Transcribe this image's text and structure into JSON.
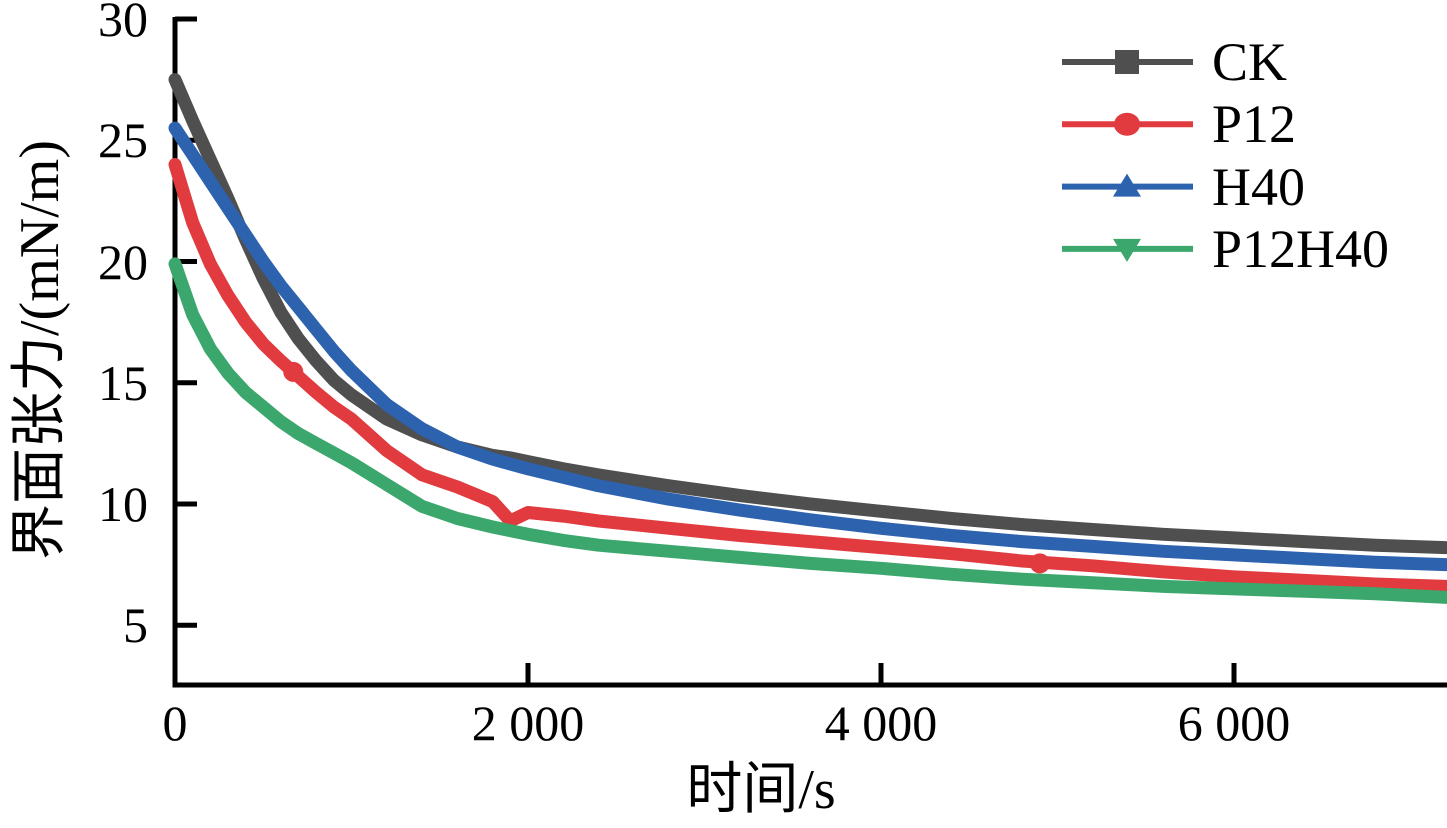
{
  "figure": {
    "background": "#ffffff"
  },
  "chart_data": {
    "type": "line",
    "title": "",
    "xlabel": "时间/s",
    "ylabel": "界面张力/(mN/m)",
    "xlim": [
      0,
      7200
    ],
    "ylim": [
      2.5,
      30
    ],
    "grid": false,
    "legend_position": "top-right",
    "axis_color": "#000000",
    "x_ticks": [
      {
        "value": 0,
        "label": "0"
      },
      {
        "value": 2000,
        "label": "2 000"
      },
      {
        "value": 4000,
        "label": "4 000"
      },
      {
        "value": 6000,
        "label": "6 000"
      }
    ],
    "y_ticks": [
      {
        "value": 5,
        "label": "5"
      },
      {
        "value": 10,
        "label": "10"
      },
      {
        "value": 15,
        "label": "15"
      },
      {
        "value": 20,
        "label": "20"
      },
      {
        "value": 25,
        "label": "25"
      },
      {
        "value": 30,
        "label": "30"
      }
    ],
    "x": [
      0,
      100,
      200,
      300,
      400,
      500,
      600,
      700,
      800,
      900,
      1000,
      1200,
      1400,
      1600,
      1800,
      1900,
      2000,
      2200,
      2400,
      2800,
      3200,
      3600,
      4000,
      4400,
      4800,
      5200,
      5600,
      6000,
      6400,
      6800,
      7200
    ],
    "series": [
      {
        "name": "CK",
        "color": "#4f4f4f",
        "marker": "square",
        "values": [
          27.5,
          25.8,
          24.2,
          22.6,
          20.9,
          19.3,
          17.9,
          16.8,
          15.9,
          15.1,
          14.5,
          13.5,
          12.85,
          12.35,
          12.0,
          11.9,
          11.75,
          11.45,
          11.2,
          10.75,
          10.35,
          10.0,
          9.7,
          9.4,
          9.15,
          8.95,
          8.75,
          8.6,
          8.45,
          8.3,
          8.2
        ]
      },
      {
        "name": "P12",
        "color": "#e13b40",
        "marker": "circle",
        "values": [
          24.0,
          21.6,
          19.9,
          18.6,
          17.5,
          16.6,
          15.9,
          15.25,
          14.6,
          14.0,
          13.5,
          12.2,
          11.2,
          10.7,
          10.1,
          9.3,
          9.65,
          9.5,
          9.3,
          9.0,
          8.7,
          8.45,
          8.2,
          7.95,
          7.65,
          7.45,
          7.2,
          7.0,
          6.85,
          6.7,
          6.6
        ],
        "highlight_markers": [
          {
            "t": 670,
            "v": 15.45
          },
          {
            "t": 4900,
            "v": 7.55
          }
        ]
      },
      {
        "name": "H40",
        "color": "#2d62af",
        "marker": "triangle-up",
        "values": [
          25.5,
          24.4,
          23.3,
          22.2,
          21.1,
          20.0,
          19.0,
          18.1,
          17.2,
          16.3,
          15.5,
          14.1,
          13.1,
          12.35,
          11.85,
          11.65,
          11.45,
          11.1,
          10.75,
          10.2,
          9.75,
          9.35,
          9.0,
          8.7,
          8.45,
          8.25,
          8.05,
          7.9,
          7.75,
          7.6,
          7.5
        ]
      },
      {
        "name": "P12H40",
        "color": "#3ba76c",
        "marker": "triangle-down",
        "values": [
          19.9,
          17.8,
          16.4,
          15.4,
          14.6,
          14.0,
          13.4,
          12.9,
          12.5,
          12.1,
          11.7,
          10.8,
          9.9,
          9.4,
          9.05,
          8.9,
          8.75,
          8.5,
          8.3,
          8.05,
          7.8,
          7.55,
          7.35,
          7.1,
          6.9,
          6.75,
          6.6,
          6.5,
          6.4,
          6.3,
          6.15
        ]
      }
    ]
  }
}
